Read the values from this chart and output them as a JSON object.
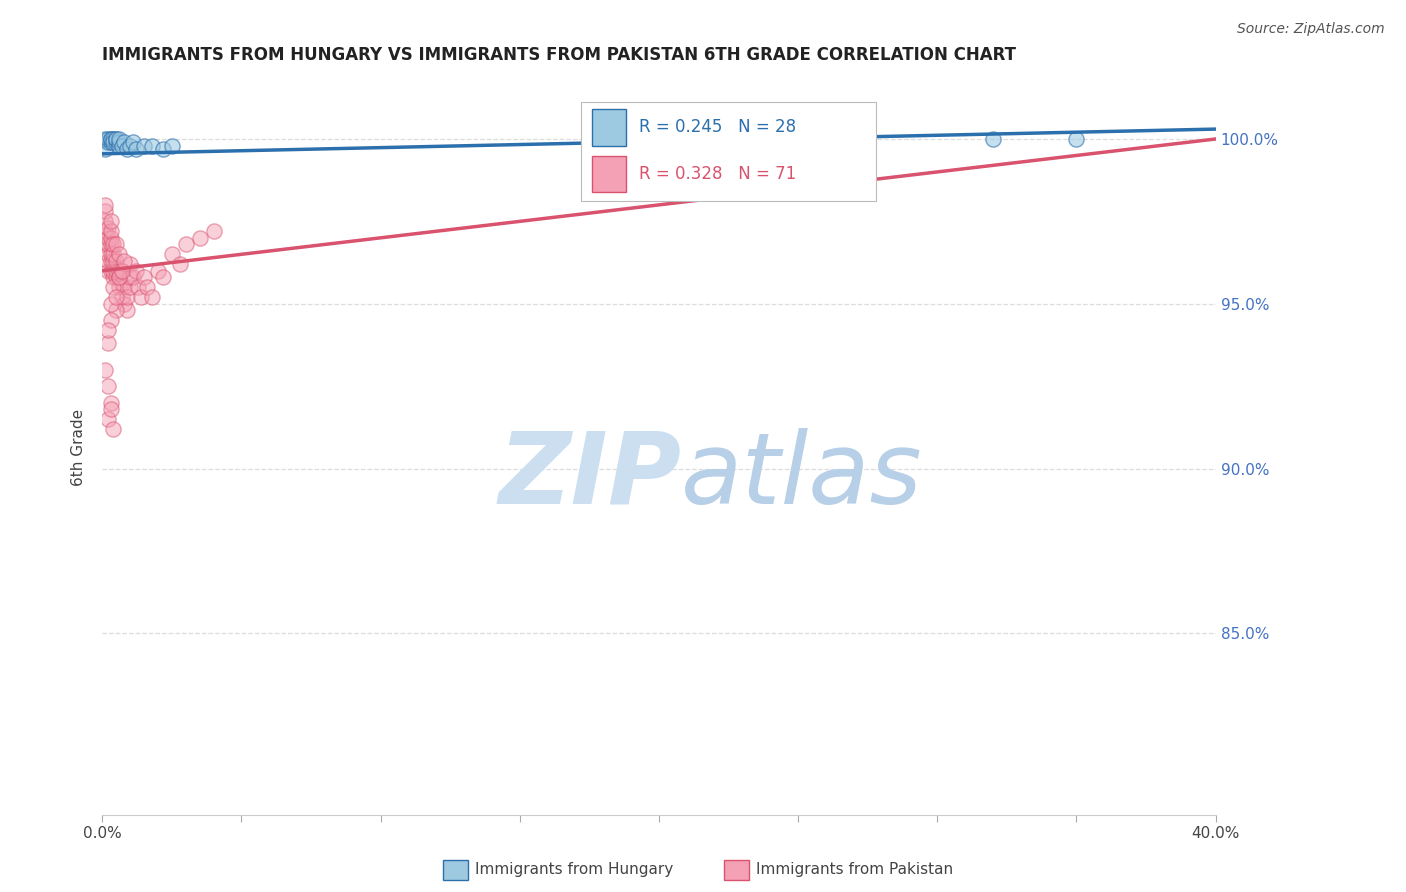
{
  "title": "IMMIGRANTS FROM HUNGARY VS IMMIGRANTS FROM PAKISTAN 6TH GRADE CORRELATION CHART",
  "source": "Source: ZipAtlas.com",
  "ylabel": "6th Grade",
  "xmin": 0.0,
  "xmax": 0.4,
  "ymin": 0.795,
  "ymax": 1.018,
  "R_hungary": 0.245,
  "N_hungary": 28,
  "R_pakistan": 0.328,
  "N_pakistan": 71,
  "color_hungary": "#9ecae1",
  "color_pakistan": "#f4a0b5",
  "line_color_hungary": "#2c6fad",
  "line_color_pakistan": "#d9526e",
  "watermark_zip_color": "#c8ddf0",
  "watermark_atlas_color": "#b8cce4",
  "legend_hungary": "Immigrants from Hungary",
  "legend_pakistan": "Immigrants from Pakistan",
  "hungary_x": [
    0.001,
    0.001,
    0.002,
    0.002,
    0.003,
    0.003,
    0.003,
    0.004,
    0.004,
    0.005,
    0.005,
    0.005,
    0.006,
    0.006,
    0.006,
    0.007,
    0.008,
    0.009,
    0.01,
    0.011,
    0.012,
    0.015,
    0.018,
    0.022,
    0.025,
    0.18,
    0.32,
    0.35
  ],
  "hungary_y": [
    0.997,
    1.0,
    0.999,
    1.0,
    0.999,
    1.0,
    1.0,
    1.0,
    0.999,
    0.999,
    1.0,
    1.0,
    0.998,
    0.999,
    1.0,
    0.998,
    0.999,
    0.997,
    0.998,
    0.999,
    0.997,
    0.998,
    0.998,
    0.997,
    0.998,
    1.0,
    1.0,
    1.0
  ],
  "pakistan_x": [
    0.0,
    0.001,
    0.001,
    0.001,
    0.001,
    0.002,
    0.002,
    0.002,
    0.002,
    0.002,
    0.002,
    0.003,
    0.003,
    0.003,
    0.003,
    0.003,
    0.003,
    0.003,
    0.004,
    0.004,
    0.004,
    0.004,
    0.004,
    0.005,
    0.005,
    0.005,
    0.005,
    0.006,
    0.006,
    0.006,
    0.006,
    0.007,
    0.007,
    0.007,
    0.008,
    0.008,
    0.009,
    0.009,
    0.01,
    0.01,
    0.01,
    0.011,
    0.012,
    0.013,
    0.014,
    0.015,
    0.016,
    0.018,
    0.02,
    0.022,
    0.025,
    0.028,
    0.03,
    0.035,
    0.04,
    0.005,
    0.003,
    0.002,
    0.002,
    0.003,
    0.004,
    0.005,
    0.006,
    0.007,
    0.008,
    0.003,
    0.002,
    0.001,
    0.002,
    0.003,
    0.004
  ],
  "pakistan_y": [
    0.968,
    0.972,
    0.975,
    0.978,
    0.98,
    0.96,
    0.963,
    0.965,
    0.968,
    0.97,
    0.973,
    0.96,
    0.963,
    0.965,
    0.968,
    0.97,
    0.972,
    0.975,
    0.958,
    0.96,
    0.963,
    0.965,
    0.968,
    0.958,
    0.96,
    0.963,
    0.968,
    0.955,
    0.958,
    0.96,
    0.965,
    0.952,
    0.956,
    0.96,
    0.95,
    0.955,
    0.948,
    0.952,
    0.955,
    0.958,
    0.962,
    0.958,
    0.96,
    0.955,
    0.952,
    0.958,
    0.955,
    0.952,
    0.96,
    0.958,
    0.965,
    0.962,
    0.968,
    0.97,
    0.972,
    0.948,
    0.945,
    0.938,
    0.942,
    0.95,
    0.955,
    0.952,
    0.958,
    0.96,
    0.963,
    0.92,
    0.915,
    0.93,
    0.925,
    0.918,
    0.912
  ],
  "trend_hungary_x0": 0.0,
  "trend_hungary_y0": 0.9955,
  "trend_hungary_x1": 0.4,
  "trend_hungary_y1": 1.003,
  "trend_pakistan_x0": 0.0,
  "trend_pakistan_y0": 0.96,
  "trend_pakistan_x1": 0.4,
  "trend_pakistan_y1": 1.0
}
